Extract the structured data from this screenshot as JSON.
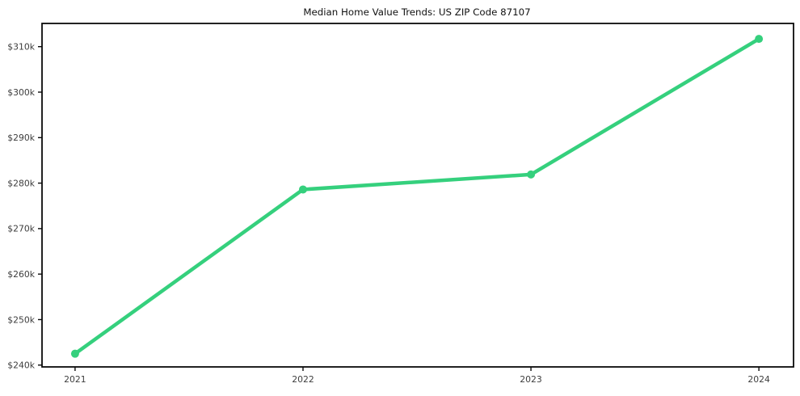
{
  "window": {
    "background_color": "#ffffff"
  },
  "chart_data": {
    "type": "line",
    "title": "Median Home Value Trends: US ZIP Code 87107",
    "xlabel": "",
    "ylabel": "",
    "x": [
      2021,
      2022,
      2023,
      2024
    ],
    "x_tick_labels": [
      "2021",
      "2022",
      "2023",
      "2024"
    ],
    "series": [
      {
        "name": "median-home-value",
        "values": [
          242500,
          278600,
          281900,
          311700
        ],
        "color": "#35d07d",
        "marker": "circle",
        "marker_radius": 5,
        "line_width": 4.5
      }
    ],
    "y_ticks": [
      240000,
      250000,
      260000,
      270000,
      280000,
      290000,
      300000,
      310000
    ],
    "y_tick_labels": [
      "$240k",
      "$250k",
      "$260k",
      "$270k",
      "$280k",
      "$290k",
      "$300k",
      "$310k"
    ],
    "xlim": [
      2020.855,
      2024.152
    ],
    "ylim": [
      239600,
      315100
    ],
    "grid": false,
    "legend": false,
    "axis_color": "#0a0a0a",
    "tick_label_color": "#3d3d3d",
    "title_color": "#111111"
  }
}
